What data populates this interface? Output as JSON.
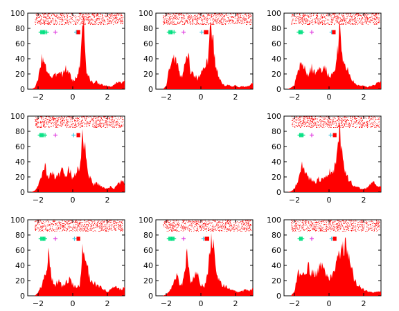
{
  "chart_data": {
    "type": "area",
    "layout": "3x3 grid of peri-event raster and histogram panels; center panel empty",
    "xlim": [
      -2.6,
      3.0
    ],
    "ylim": [
      0,
      100
    ],
    "xticks": [
      -2,
      0,
      2
    ],
    "yticks": [
      0,
      20,
      40,
      60,
      80,
      100
    ],
    "colors": {
      "histogram": "#ff0000",
      "raster": "#ff0000",
      "marker_green": "#00e080",
      "marker_magenta": "#e040e0",
      "marker_cyan": "#40c8e0",
      "marker_red": "#ff0000"
    },
    "panels": [
      {
        "name": "row1-col1",
        "x": [
          -2.6,
          -2.4,
          -2.2,
          -2.0,
          -1.8,
          -1.6,
          -1.4,
          -1.2,
          -1.0,
          -0.8,
          -0.6,
          -0.4,
          -0.2,
          0.0,
          0.2,
          0.4,
          0.6,
          0.8,
          1.0,
          1.2,
          1.4,
          1.6,
          1.8,
          2.0,
          2.2,
          2.4,
          2.6,
          2.8,
          3.0
        ],
        "y": [
          0,
          0,
          2,
          12,
          42,
          30,
          22,
          15,
          18,
          25,
          20,
          27,
          22,
          10,
          15,
          28,
          98,
          22,
          12,
          8,
          10,
          6,
          5,
          4,
          3,
          6,
          10,
          8,
          15
        ],
        "raster_y": [
          85,
          100
        ],
        "markers": [
          {
            "color": "green",
            "x": [
              -1.85,
              -1.8,
              -1.75,
              -1.7,
              -1.65,
              -1.6,
              -1.5
            ],
            "y": 75
          },
          {
            "color": "magenta",
            "x": [
              -1.0
            ],
            "y": 75
          },
          {
            "color": "cyan",
            "x": [
              0.2
            ],
            "y": 75
          },
          {
            "color": "red",
            "x": [
              0.3,
              0.35
            ],
            "y": 75
          }
        ]
      },
      {
        "name": "row1-col2",
        "x": [
          -2.6,
          -2.4,
          -2.2,
          -2.0,
          -1.8,
          -1.6,
          -1.4,
          -1.2,
          -1.0,
          -0.8,
          -0.6,
          -0.4,
          -0.2,
          0.0,
          0.2,
          0.4,
          0.6,
          0.8,
          1.0,
          1.2,
          1.4,
          1.6,
          1.8,
          2.0,
          2.2,
          2.4,
          2.6,
          2.8,
          3.0
        ],
        "y": [
          0,
          0,
          0,
          4,
          30,
          45,
          35,
          18,
          20,
          55,
          25,
          20,
          14,
          20,
          28,
          35,
          92,
          40,
          18,
          8,
          4,
          6,
          3,
          5,
          2,
          4,
          3,
          5,
          8
        ],
        "raster_y": [
          85,
          100
        ],
        "markers": [
          {
            "color": "green",
            "x": [
              -1.85,
              -1.8,
              -1.75,
              -1.7,
              -1.65,
              -1.55
            ],
            "y": 75
          },
          {
            "color": "magenta",
            "x": [
              -1.0
            ],
            "y": 75
          },
          {
            "color": "cyan",
            "x": [
              0.05
            ],
            "y": 75
          },
          {
            "color": "red",
            "x": [
              0.25,
              0.3,
              0.35
            ],
            "y": 75
          }
        ]
      },
      {
        "name": "row1-col3",
        "x": [
          -2.6,
          -2.4,
          -2.2,
          -2.0,
          -1.8,
          -1.6,
          -1.4,
          -1.2,
          -1.0,
          -0.8,
          -0.6,
          -0.4,
          -0.2,
          0.0,
          0.2,
          0.4,
          0.6,
          0.8,
          1.0,
          1.2,
          1.4,
          1.6,
          1.8,
          2.0,
          2.2,
          2.4,
          2.6,
          2.8,
          3.0
        ],
        "y": [
          0,
          0,
          2,
          6,
          22,
          35,
          30,
          18,
          28,
          20,
          28,
          24,
          30,
          15,
          20,
          28,
          78,
          35,
          30,
          18,
          10,
          6,
          4,
          5,
          3,
          4,
          6,
          8,
          10
        ],
        "raster_y": [
          85,
          100
        ],
        "markers": [
          {
            "color": "green",
            "x": [
              -1.75,
              -1.7,
              -1.65,
              -1.6,
              -1.55
            ],
            "y": 75
          },
          {
            "color": "magenta",
            "x": [
              -1.0
            ],
            "y": 75
          },
          {
            "color": "cyan",
            "x": [
              0.15
            ],
            "y": 75
          },
          {
            "color": "red",
            "x": [
              0.25,
              0.3
            ],
            "y": 75
          }
        ]
      },
      {
        "name": "row2-col1",
        "x": [
          -2.6,
          -2.4,
          -2.2,
          -2.0,
          -1.8,
          -1.6,
          -1.4,
          -1.2,
          -1.0,
          -0.8,
          -0.6,
          -0.4,
          -0.2,
          0.0,
          0.2,
          0.4,
          0.6,
          0.8,
          1.0,
          1.2,
          1.4,
          1.6,
          1.8,
          2.0,
          2.2,
          2.4,
          2.6,
          2.8,
          3.0
        ],
        "y": [
          0,
          0,
          2,
          8,
          20,
          32,
          20,
          25,
          18,
          22,
          28,
          22,
          30,
          18,
          25,
          35,
          78,
          40,
          18,
          10,
          12,
          8,
          6,
          4,
          8,
          5,
          10,
          14,
          12
        ],
        "raster_y": [
          85,
          100
        ],
        "markers": [
          {
            "color": "green",
            "x": [
              -1.9,
              -1.85,
              -1.8,
              -1.75,
              -1.7,
              -1.6
            ],
            "y": 75
          },
          {
            "color": "magenta",
            "x": [
              -1.0
            ],
            "y": 75
          },
          {
            "color": "cyan",
            "x": [
              0.05
            ],
            "y": 75
          },
          {
            "color": "red",
            "x": [
              0.3,
              0.35
            ],
            "y": 75
          }
        ]
      },
      {
        "name": "row2-col2",
        "empty": true
      },
      {
        "name": "row2-col3",
        "x": [
          -2.6,
          -2.4,
          -2.2,
          -2.0,
          -1.8,
          -1.6,
          -1.4,
          -1.2,
          -1.0,
          -0.8,
          -0.6,
          -0.4,
          -0.2,
          0.0,
          0.2,
          0.4,
          0.6,
          0.8,
          1.0,
          1.2,
          1.4,
          1.6,
          1.8,
          2.0,
          2.2,
          2.4,
          2.6,
          2.8,
          3.0
        ],
        "y": [
          0,
          0,
          1,
          5,
          15,
          38,
          25,
          20,
          15,
          12,
          18,
          15,
          20,
          25,
          30,
          35,
          80,
          38,
          22,
          15,
          10,
          8,
          5,
          4,
          6,
          10,
          14,
          8,
          10
        ],
        "raster_y": [
          85,
          100
        ],
        "markers": [
          {
            "color": "green",
            "x": [
              -1.7,
              -1.65,
              -1.6,
              -1.55,
              -1.5
            ],
            "y": 75
          },
          {
            "color": "magenta",
            "x": [
              -1.0
            ],
            "y": 75
          },
          {
            "color": "cyan",
            "x": [
              0.1
            ],
            "y": 75
          },
          {
            "color": "red",
            "x": [
              0.3,
              0.35
            ],
            "y": 75
          }
        ]
      },
      {
        "name": "row3-col1",
        "x": [
          -2.6,
          -2.4,
          -2.2,
          -2.0,
          -1.8,
          -1.6,
          -1.4,
          -1.2,
          -1.0,
          -0.8,
          -0.6,
          -0.4,
          -0.2,
          0.0,
          0.2,
          0.4,
          0.6,
          0.8,
          1.0,
          1.2,
          1.4,
          1.6,
          1.8,
          2.0,
          2.2,
          2.4,
          2.6,
          2.8,
          3.0
        ],
        "y": [
          0,
          0,
          0,
          4,
          14,
          25,
          55,
          22,
          15,
          20,
          12,
          18,
          22,
          15,
          10,
          15,
          68,
          42,
          22,
          18,
          14,
          12,
          8,
          6,
          8,
          12,
          10,
          8,
          12
        ],
        "raster_y": [
          85,
          100
        ],
        "markers": [
          {
            "color": "green",
            "x": [
              -1.85,
              -1.8,
              -1.75,
              -1.7,
              -1.65,
              -1.6
            ],
            "y": 75
          },
          {
            "color": "magenta",
            "x": [
              -1.0
            ],
            "y": 75
          },
          {
            "color": "cyan",
            "x": [
              0.1
            ],
            "y": 75
          },
          {
            "color": "red",
            "x": [
              0.3,
              0.35
            ],
            "y": 75
          }
        ]
      },
      {
        "name": "row3-col2",
        "x": [
          -2.6,
          -2.4,
          -2.2,
          -2.0,
          -1.8,
          -1.6,
          -1.4,
          -1.2,
          -1.0,
          -0.8,
          -0.6,
          -0.4,
          -0.2,
          0.0,
          0.2,
          0.4,
          0.6,
          0.8,
          1.0,
          1.2,
          1.4,
          1.6,
          1.8,
          2.0,
          2.2,
          2.4,
          2.6,
          2.8,
          3.0
        ],
        "y": [
          0,
          0,
          0,
          2,
          6,
          15,
          28,
          12,
          20,
          65,
          18,
          25,
          30,
          15,
          12,
          28,
          88,
          50,
          25,
          15,
          12,
          10,
          8,
          6,
          5,
          6,
          8,
          6,
          10
        ],
        "raster_y": [
          85,
          100
        ],
        "markers": [
          {
            "color": "green",
            "x": [
              -1.85,
              -1.8,
              -1.75,
              -1.7,
              -1.65,
              -1.6,
              -1.55
            ],
            "y": 75
          },
          {
            "color": "magenta",
            "x": [
              -1.0
            ],
            "y": 75
          },
          {
            "color": "cyan",
            "x": [
              0.15
            ],
            "y": 75
          },
          {
            "color": "red",
            "x": [
              0.3,
              0.35,
              0.4
            ],
            "y": 75
          }
        ]
      },
      {
        "name": "row3-col3",
        "x": [
          -2.6,
          -2.4,
          -2.2,
          -2.0,
          -1.8,
          -1.6,
          -1.4,
          -1.2,
          -1.0,
          -0.8,
          -0.6,
          -0.4,
          -0.2,
          0.0,
          0.2,
          0.4,
          0.6,
          0.8,
          1.0,
          1.2,
          1.4,
          1.6,
          1.8,
          2.0,
          2.2,
          2.4,
          2.6,
          2.8,
          3.0
        ],
        "y": [
          0,
          0,
          0,
          6,
          28,
          35,
          25,
          38,
          30,
          28,
          35,
          42,
          30,
          20,
          32,
          40,
          62,
          60,
          65,
          45,
          25,
          15,
          12,
          8,
          6,
          5,
          4,
          6,
          5
        ],
        "raster_y": [
          85,
          100
        ],
        "markers": [
          {
            "color": "green",
            "x": [
              -1.7,
              -1.65,
              -1.6,
              -1.55
            ],
            "y": 75
          },
          {
            "color": "magenta",
            "x": [
              -1.0
            ],
            "y": 75
          },
          {
            "color": "cyan",
            "x": [
              0.15
            ],
            "y": 75
          },
          {
            "color": "red",
            "x": [
              0.3,
              0.35
            ],
            "y": 75
          }
        ]
      }
    ]
  }
}
